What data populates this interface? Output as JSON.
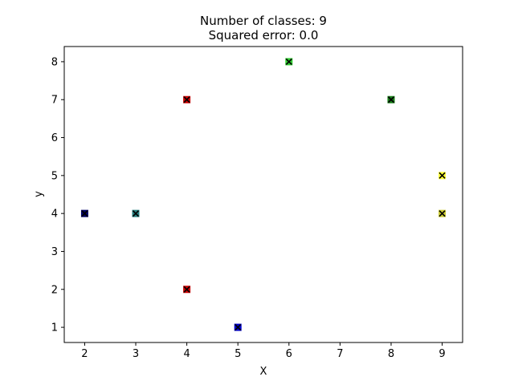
{
  "chart_data": {
    "type": "scatter",
    "title": "Number of classes: 9",
    "subtitle": "Squared error: 0.0",
    "xlabel": "X",
    "ylabel": "y",
    "xlim": [
      1.6,
      9.4
    ],
    "ylim": [
      0.6,
      8.4
    ],
    "xticks": [
      2,
      3,
      4,
      5,
      6,
      7,
      8,
      9
    ],
    "yticks": [
      1,
      2,
      3,
      4,
      5,
      6,
      7,
      8
    ],
    "grid": false,
    "legend": "none",
    "marker": "x-over-square",
    "points": [
      {
        "x": 2,
        "y": 4,
        "color": "#000066"
      },
      {
        "x": 3,
        "y": 4,
        "color": "#267f7f"
      },
      {
        "x": 4,
        "y": 7,
        "color": "#cc0000"
      },
      {
        "x": 4,
        "y": 2,
        "color": "#cc0000"
      },
      {
        "x": 5,
        "y": 1,
        "color": "#0000cc"
      },
      {
        "x": 6,
        "y": 8,
        "color": "#33cc33"
      },
      {
        "x": 8,
        "y": 7,
        "color": "#197f19"
      },
      {
        "x": 9,
        "y": 5,
        "color": "#ffff33"
      },
      {
        "x": 9,
        "y": 4,
        "color": "#cccc33"
      }
    ]
  }
}
